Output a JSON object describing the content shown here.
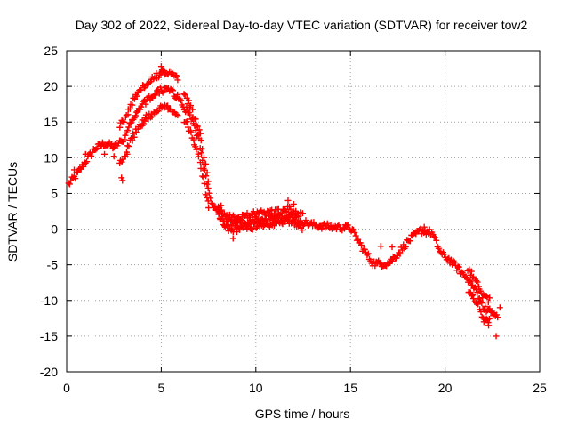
{
  "chart_data": {
    "type": "scatter",
    "title": "Day 302 of 2022, Sidereal Day-to-day VTEC variation (SDTVAR) for receiver tow2",
    "xlabel": "GPS time / hours",
    "ylabel": "SDTVAR / TECUs",
    "xlim": [
      0,
      25
    ],
    "ylim": [
      -20,
      25
    ],
    "xticks": [
      0,
      5,
      10,
      15,
      20,
      25
    ],
    "yticks": [
      -20,
      -15,
      -10,
      -5,
      0,
      5,
      10,
      15,
      20,
      25
    ],
    "grid": true,
    "marker": "+",
    "color": "#ff0000",
    "curve": [
      [
        0.1,
        6.3
      ],
      [
        0.5,
        7.5
      ],
      [
        1.0,
        9.5
      ],
      [
        1.5,
        11.3
      ],
      [
        2.0,
        12.0
      ],
      [
        2.5,
        11.5
      ],
      [
        3.0,
        12.5
      ],
      [
        3.5,
        15.5
      ],
      [
        4.0,
        17.5
      ],
      [
        4.5,
        18.5
      ],
      [
        5.0,
        19.5
      ],
      [
        5.5,
        19.5
      ],
      [
        6.0,
        18.0
      ],
      [
        6.5,
        16.0
      ],
      [
        7.0,
        12.5
      ],
      [
        7.3,
        8.0
      ],
      [
        7.6,
        4.0
      ],
      [
        8.0,
        2.5
      ],
      [
        8.5,
        1.0
      ],
      [
        9.0,
        0.8
      ],
      [
        9.5,
        1.0
      ],
      [
        10.0,
        1.3
      ],
      [
        11.0,
        1.5
      ],
      [
        11.8,
        2.0
      ],
      [
        12.5,
        1.0
      ],
      [
        13.0,
        0.6
      ],
      [
        14.0,
        0.3
      ],
      [
        15.0,
        0.2
      ],
      [
        15.6,
        -2.5
      ],
      [
        16.2,
        -4.8
      ],
      [
        17.0,
        -4.8
      ],
      [
        17.5,
        -3.5
      ],
      [
        18.0,
        -1.8
      ],
      [
        18.7,
        -0.2
      ],
      [
        19.3,
        -0.5
      ],
      [
        19.8,
        -3.5
      ],
      [
        20.2,
        -4.2
      ],
      [
        21.2,
        -7.0
      ],
      [
        21.7,
        -9.0
      ],
      [
        22.0,
        -11.0
      ],
      [
        22.4,
        -11.5
      ],
      [
        22.8,
        -12.0
      ]
    ],
    "bands": [
      {
        "start": 2.8,
        "end": 5.9,
        "offsets": [
          2.5,
          -2.5
        ]
      },
      {
        "start": 6.2,
        "end": 7.5,
        "offsets": [
          1.5,
          -2.0
        ]
      },
      {
        "start": 8.0,
        "end": 12.5,
        "offsets": [
          0.8,
          -0.8
        ]
      },
      {
        "start": 21.2,
        "end": 22.4,
        "offsets": [
          1.5,
          -1.5
        ]
      }
    ],
    "outliers": [
      [
        2.9,
        7.2
      ],
      [
        2.95,
        6.8
      ],
      [
        5.0,
        22.8
      ],
      [
        5.05,
        22.3
      ],
      [
        4.2,
        16.0
      ],
      [
        4.0,
        14.5
      ],
      [
        8.8,
        -1.3
      ],
      [
        7.5,
        3.0
      ],
      [
        22.3,
        -13.5
      ],
      [
        22.7,
        -15.0
      ],
      [
        22.9,
        -11.0
      ],
      [
        11.7,
        4.0
      ],
      [
        12.0,
        3.5
      ],
      [
        16.6,
        -2.4
      ],
      [
        17.2,
        -2.5
      ],
      [
        18.9,
        0.3
      ],
      [
        0.4,
        8.3
      ],
      [
        1.0,
        10.5
      ],
      [
        2.0,
        10.5
      ],
      [
        2.5,
        10.2
      ],
      [
        3.2,
        10.5
      ]
    ]
  }
}
